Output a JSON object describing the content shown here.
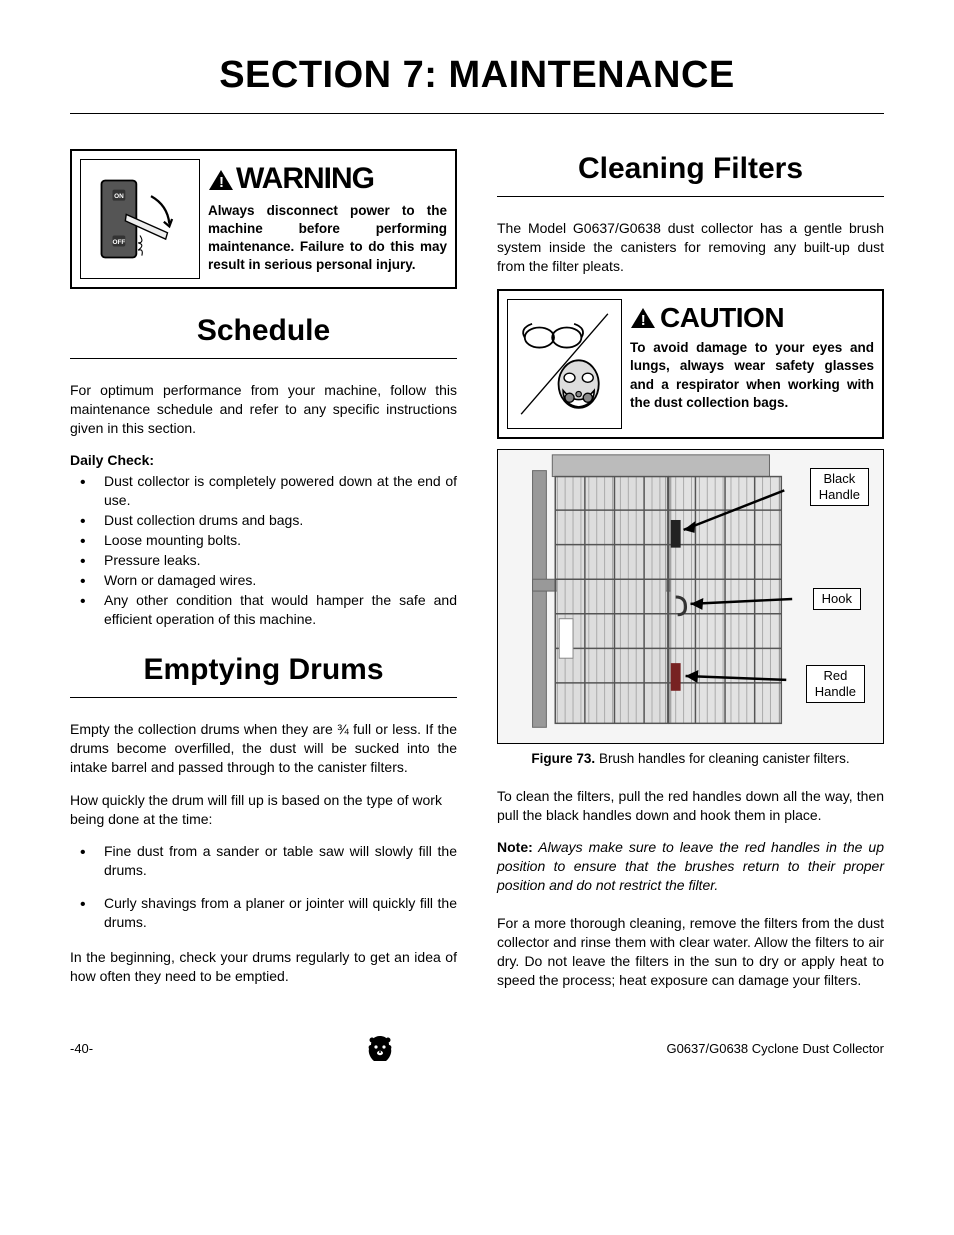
{
  "section_title": "SECTION 7: MAINTENANCE",
  "warning": {
    "label": "WARNING",
    "body": "Always disconnect power to the machine before performing maintenance. Failure to do this may result in serious personal injury.",
    "switch": {
      "on": "ON",
      "off": "OFF"
    }
  },
  "schedule": {
    "heading": "Schedule",
    "intro": "For optimum performance from your machine, follow this maintenance schedule and refer to any specific instructions given in this section.",
    "daily_label": "Daily Check:",
    "items": [
      "Dust collector is completely powered down at the end of use.",
      "Dust collection drums and bags.",
      "Loose mounting bolts.",
      "Pressure leaks.",
      "Worn or damaged wires.",
      "Any other condition that would hamper the safe and efficient operation of this machine."
    ]
  },
  "emptying": {
    "heading": "Emptying Drums",
    "p1": "Empty the collection drums when they are ¾ full or less. If the drums become overfilled, the dust will be sucked into the intake barrel and passed through to the canister filters.",
    "p2": "How quickly the drum will fill up is based on the type of work being done at the time:",
    "items": [
      "Fine dust from a sander or table saw will slowly fill the drums.",
      "Curly shavings from a planer or jointer will quickly fill the drums."
    ],
    "p3": "In the beginning, check your drums regularly to get an idea of how often they need to be emptied."
  },
  "cleaning": {
    "heading": "Cleaning Filters",
    "intro": "The Model G0637/G0638 dust collector has a gentle brush system inside the canisters for removing any built-up dust from the filter pleats.",
    "caution": {
      "label": "CAUTION",
      "body": "To avoid damage to your eyes and lungs, always wear safety glasses and a respirator when working with the dust collection bags."
    },
    "figure": {
      "labels": {
        "black": "Black Handle",
        "hook": "Hook",
        "red": "Red Handle"
      },
      "caption_bold": "Figure 73.",
      "caption_rest": " Brush handles for cleaning canister filters."
    },
    "p1": "To clean the filters, pull the red handles down all the way, then pull the black handles down and hook them in place.",
    "note_label": "Note:",
    "note_body": " Always make sure to leave the red handles in the up position to ensure that the brushes return to their proper position and do not restrict the filter.",
    "p2": "For a more thorough cleaning, remove the filters from the dust collector and rinse them with clear water. Allow the filters to air dry. Do not leave the filters in the sun to dry or apply heat to speed the process; heat exposure can damage your filters."
  },
  "footer": {
    "page": "-40-",
    "doc": "G0637/G0638 Cyclone Dust Collector"
  }
}
